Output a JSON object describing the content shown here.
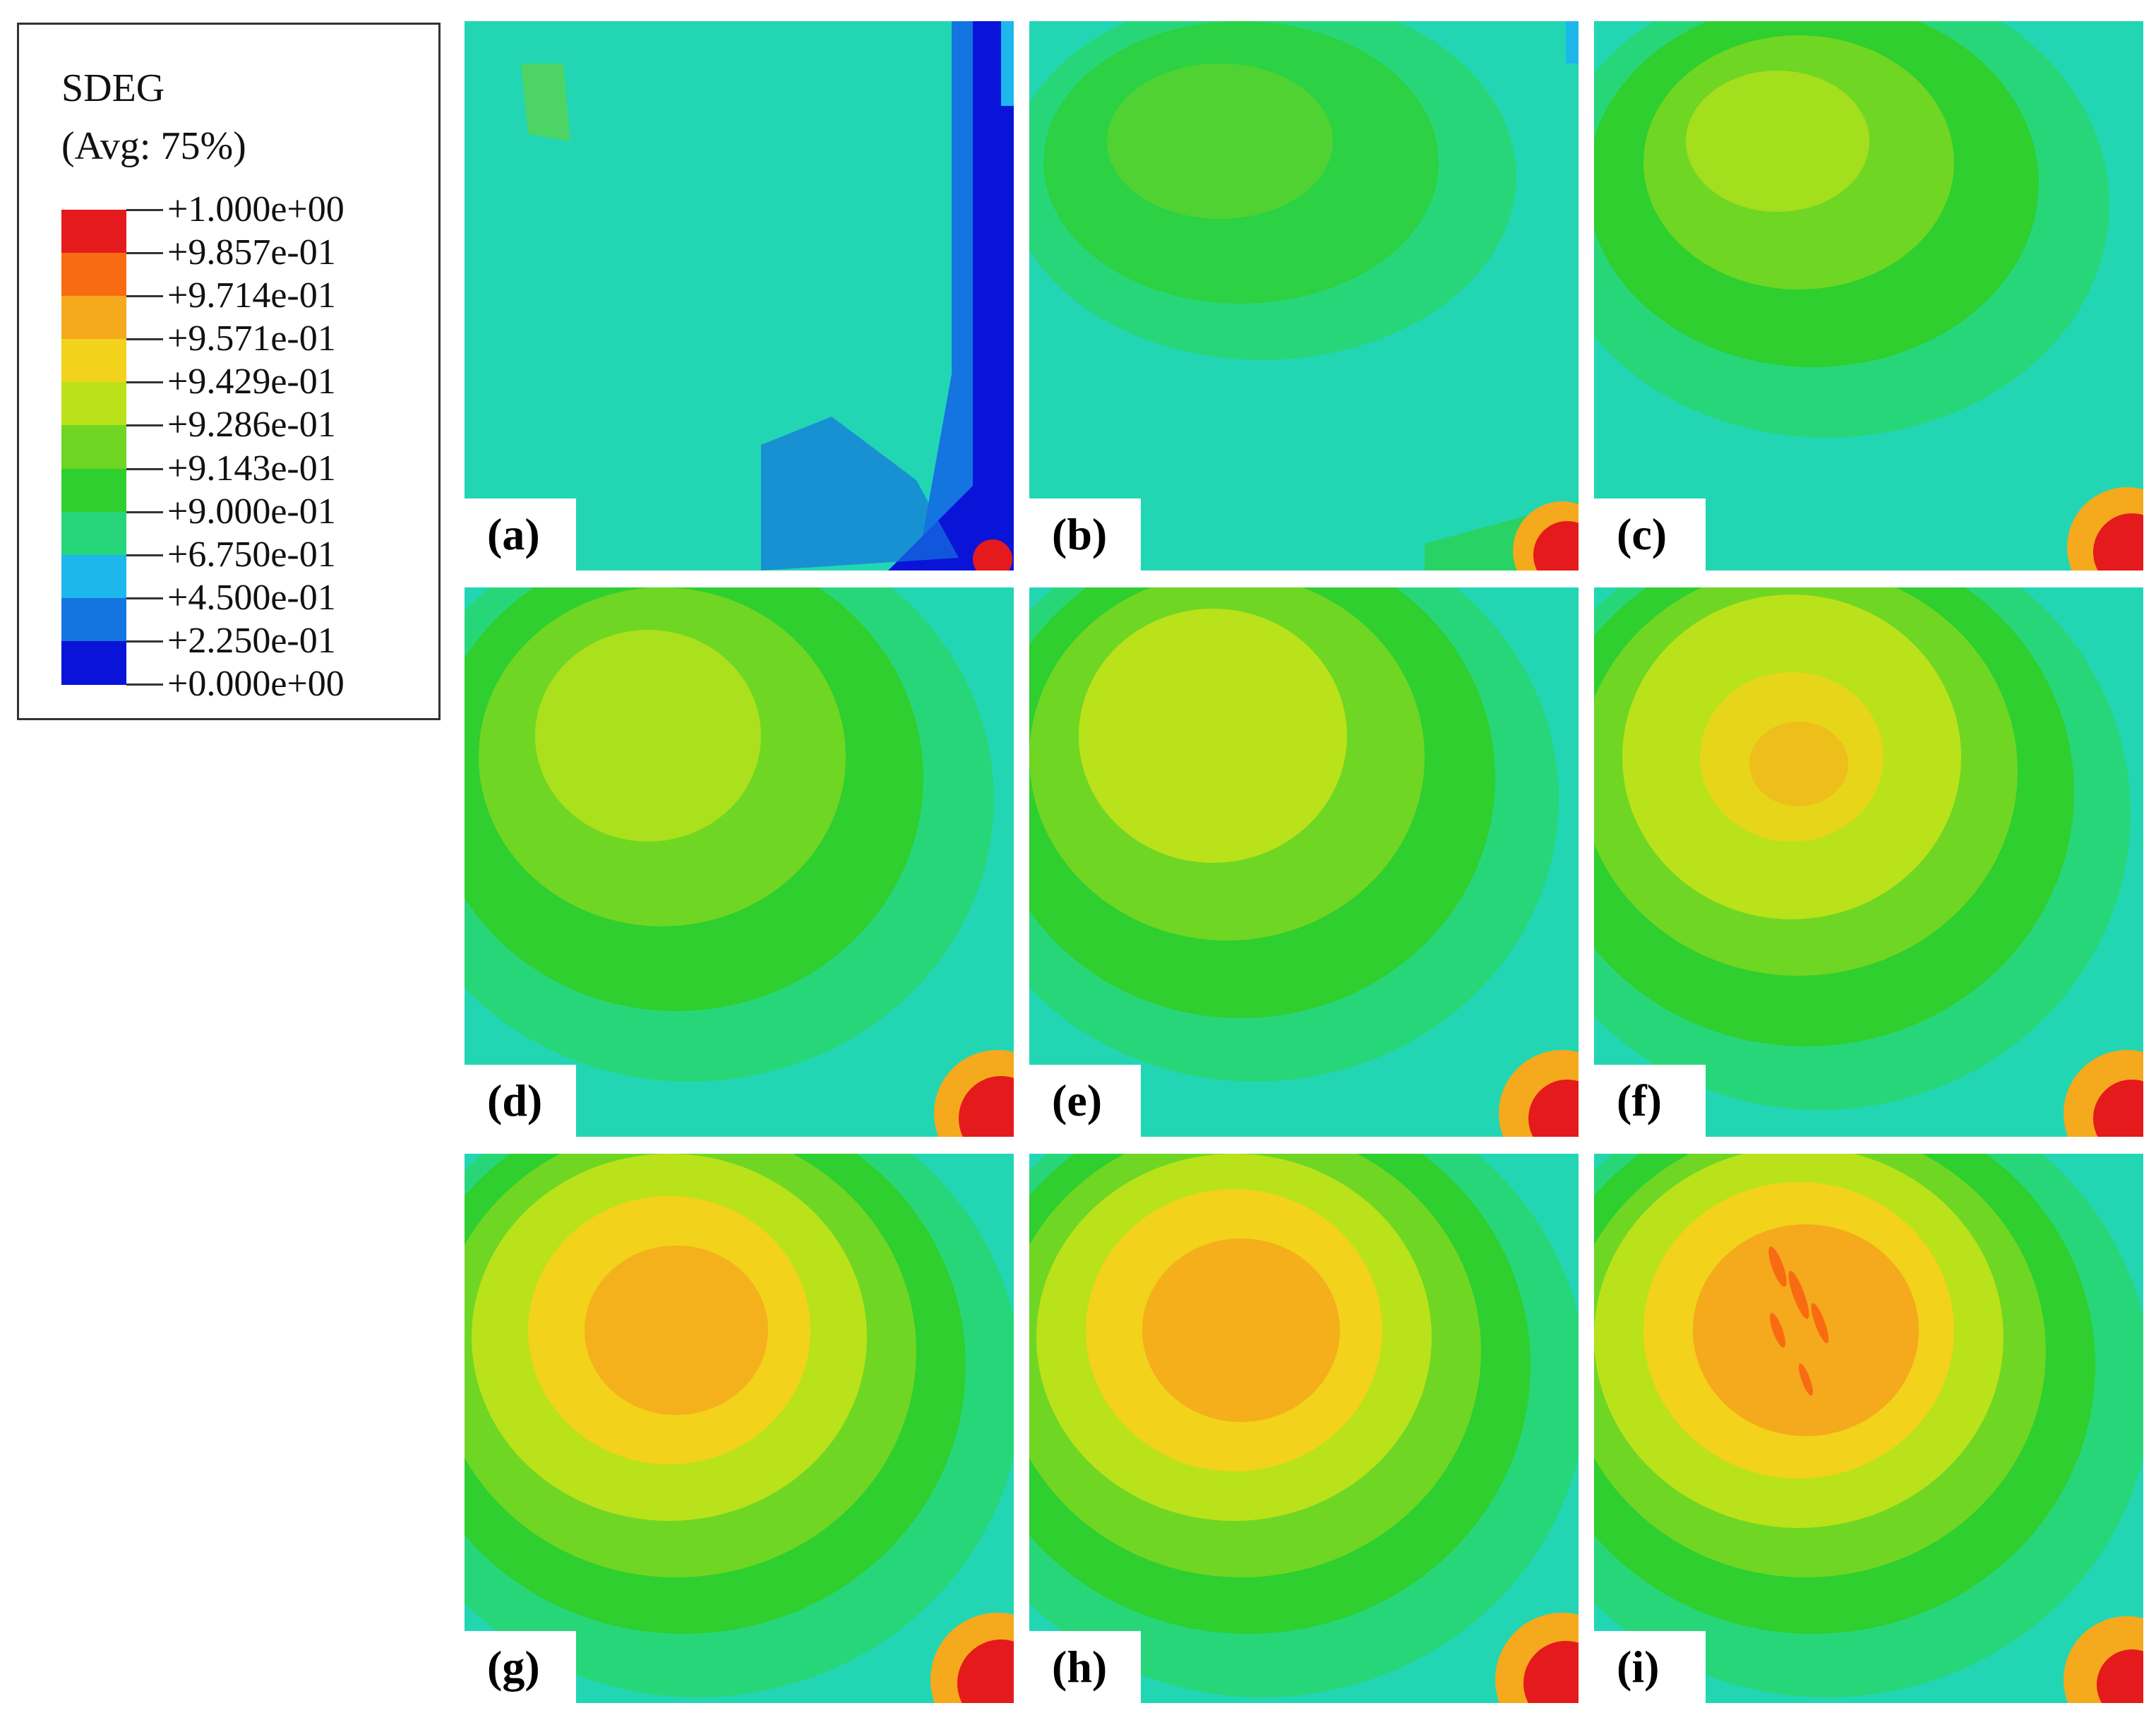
{
  "legend": {
    "title": "SDEG",
    "subtitle": "(Avg: 75%)",
    "labels": [
      "+1.000e+00",
      "+9.857e-01",
      "+9.714e-01",
      "+9.571e-01",
      "+9.429e-01",
      "+9.286e-01",
      "+9.143e-01",
      "+9.000e-01",
      "+6.750e-01",
      "+4.500e-01",
      "+2.250e-01",
      "+0.000e+00"
    ],
    "colors": [
      "#e41a1c",
      "#f86b12",
      "#f5a91c",
      "#f2d21a",
      "#b9e21a",
      "#6fd624",
      "#2ecf2e",
      "#28d67a",
      "#22dcc0",
      "#1cb8ec",
      "#1474e0",
      "#0a14d8"
    ]
  },
  "panels": [
    {
      "label": "(a)"
    },
    {
      "label": "(b)"
    },
    {
      "label": "(c)"
    },
    {
      "label": "(d)"
    },
    {
      "label": "(e)"
    },
    {
      "label": "(f)"
    },
    {
      "label": "(g)"
    },
    {
      "label": "(h)"
    },
    {
      "label": "(i)"
    }
  ]
}
